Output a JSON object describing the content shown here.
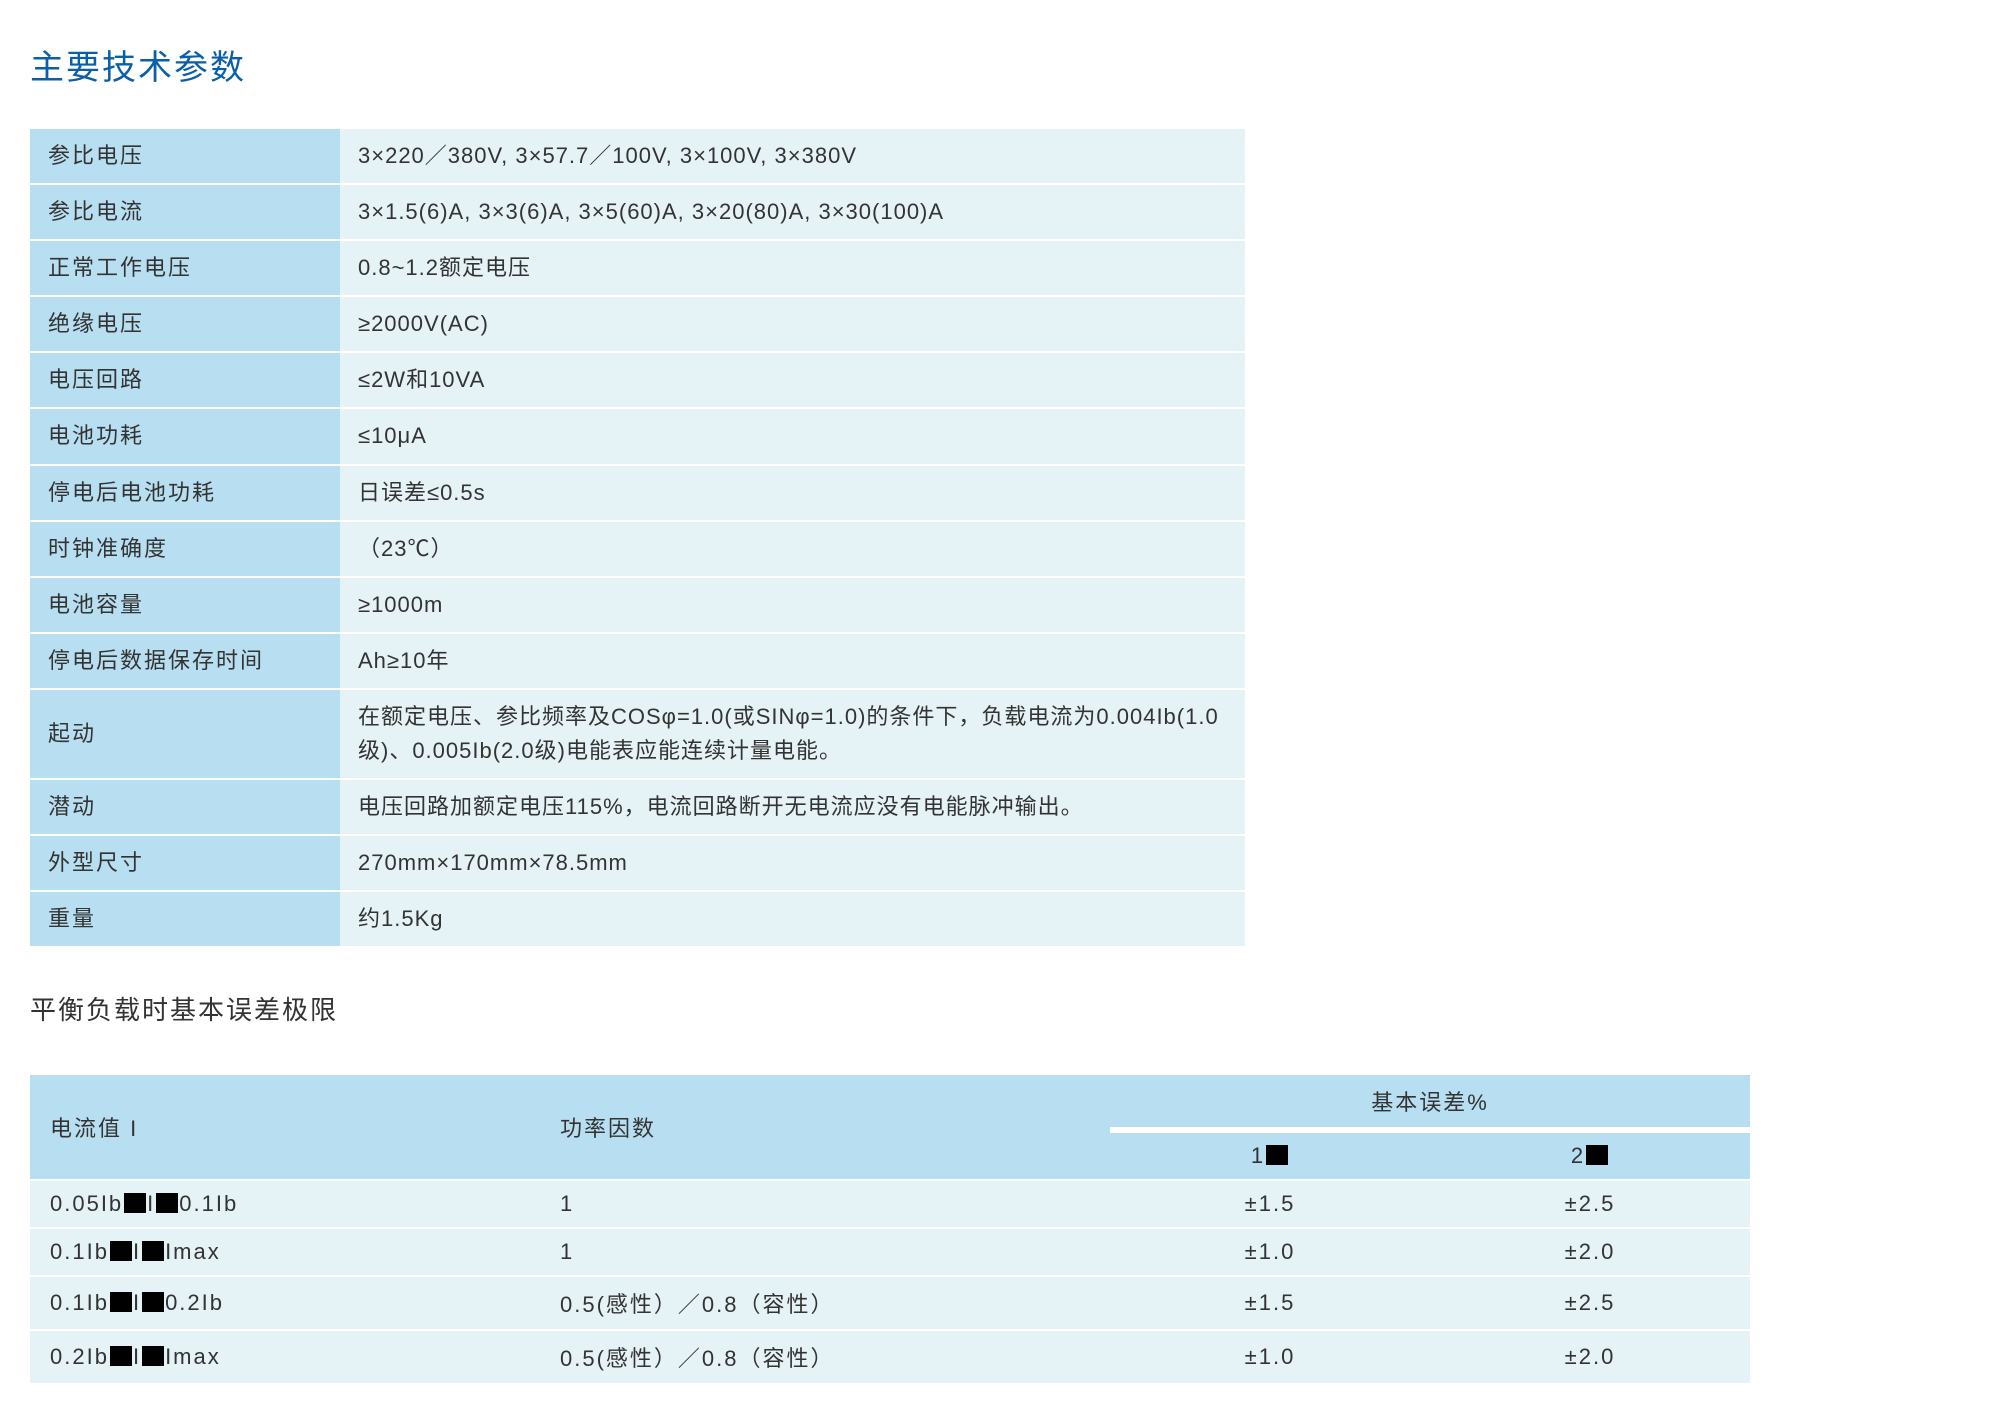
{
  "title": "主要技术参数",
  "subtitle": "平衡负载时基本误差极限",
  "specs": {
    "rows": [
      {
        "label": "参比电压",
        "value": "3×220／380V, 3×57.7／100V, 3×100V, 3×380V"
      },
      {
        "label": "参比电流",
        "value": "3×1.5(6)A, 3×3(6)A, 3×5(60)A, 3×20(80)A,  3×30(100)A"
      },
      {
        "label": "正常工作电压",
        "value": "0.8~1.2额定电压"
      },
      {
        "label": "绝缘电压",
        "value": "≥2000V(AC)"
      },
      {
        "label": "电压回路",
        "value": "≤2W和10VA"
      },
      {
        "label": "电池功耗",
        "value": "≤10μA"
      },
      {
        "label": "停电后电池功耗",
        "value": "日误差≤0.5s"
      },
      {
        "label": "时钟准确度",
        "value": "（23℃）"
      },
      {
        "label": "电池容量",
        "value": "≥1000m"
      },
      {
        "label": "停电后数据保存时间",
        "value": "Ah≥10年"
      },
      {
        "label": "起动",
        "value": "在额定电压、参比频率及COSφ=1.0(或SINφ=1.0)的条件下，负载电流为0.004Ib(1.0级)、0.005Ib(2.0级)电能表应能连续计量电能。"
      },
      {
        "label": "潜动",
        "value": "电压回路加额定电压115%，电流回路断开无电流应没有电能脉冲输出。"
      },
      {
        "label": "外型尺寸",
        "value": "270mm×170mm×78.5mm"
      },
      {
        "label": "重量",
        "value": "约1.5Kg"
      }
    ]
  },
  "errorTable": {
    "headers": {
      "current": "电流值 I",
      "pf": "功率因数",
      "baseErr": "基本误差%",
      "col1Prefix": "1",
      "col2Prefix": "2"
    },
    "rows": [
      {
        "currentParts": [
          "0.05Ib",
          "I",
          "0.1Ib"
        ],
        "pf": "1",
        "e1": "±1.5",
        "e2": "±2.5"
      },
      {
        "currentParts": [
          "0.1Ib",
          "I",
          "Imax"
        ],
        "pf": "1",
        "e1": "±1.0",
        "e2": "±2.0"
      },
      {
        "currentParts": [
          "0.1Ib",
          "I",
          "0.2Ib"
        ],
        "pf": "0.5(感性）／0.8（容性）",
        "e1": "±1.5",
        "e2": "±2.5"
      },
      {
        "currentParts": [
          "0.2Ib",
          "I",
          "Imax"
        ],
        "pf": "0.5(感性）／0.8（容性）",
        "e1": "±1.0",
        "e2": "±2.0"
      }
    ]
  },
  "colors": {
    "title": "#0a5fa8",
    "labelBg": "#b8def1",
    "valueBg": "#e5f2f6",
    "pageBg": "#ffffff",
    "text": "#333333"
  },
  "layout": {
    "specTableWidthPx": 1215,
    "errTableWidthPx": 1720,
    "labelColWidthPx": 310,
    "fontSizePx": 22,
    "titleFontSizePx": 34,
    "subtitleFontSizePx": 26
  }
}
